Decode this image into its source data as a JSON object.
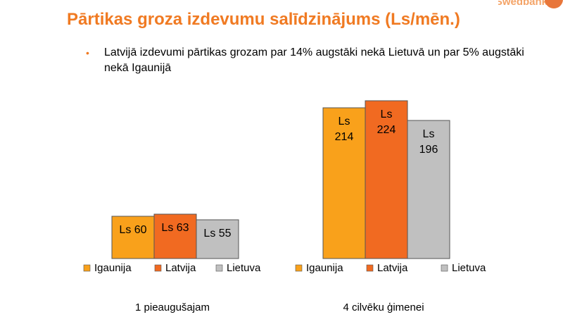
{
  "title": "Pārtikas groza izdevumu salīdzinājums (Ls/mēn.)",
  "logo": {
    "text": "Swedbank"
  },
  "bullet": {
    "text": "Latvijā izdevumi pārtikas grozam par 14% augstāki nekā Lietuvā un par 5% augstāki nekā Igaunijā"
  },
  "colors": {
    "Igaunija": "#F9A11B",
    "Latvija": "#F16A21",
    "Lietuva": "#C0C0C0",
    "title": "#F07A22"
  },
  "chart_data": [
    {
      "type": "bar",
      "categories": [
        "Igaunija",
        "Latvija",
        "Lietuva"
      ],
      "values": [
        60,
        63,
        55
      ],
      "data_labels": [
        "Ls 60",
        "Ls 63",
        "Ls 55"
      ],
      "xlabel": "1 pieaugušajam",
      "legend": [
        "Igaunija",
        "Latvija",
        "Lietuva"
      ],
      "legend_placement": "bottom",
      "ylim": [
        0,
        230
      ],
      "grid": false
    },
    {
      "type": "bar",
      "categories": [
        "Igaunija",
        "Latvija",
        "Lietuva"
      ],
      "values": [
        214,
        224,
        196
      ],
      "data_labels": [
        "Ls 214",
        "Ls 224",
        "Ls 196"
      ],
      "xlabel": "4 cilvēku ģimenei",
      "legend": [
        "Igaunija",
        "Latvija",
        "Lietuva"
      ],
      "legend_placement": "bottom",
      "ylim": [
        0,
        230
      ],
      "grid": false
    }
  ]
}
